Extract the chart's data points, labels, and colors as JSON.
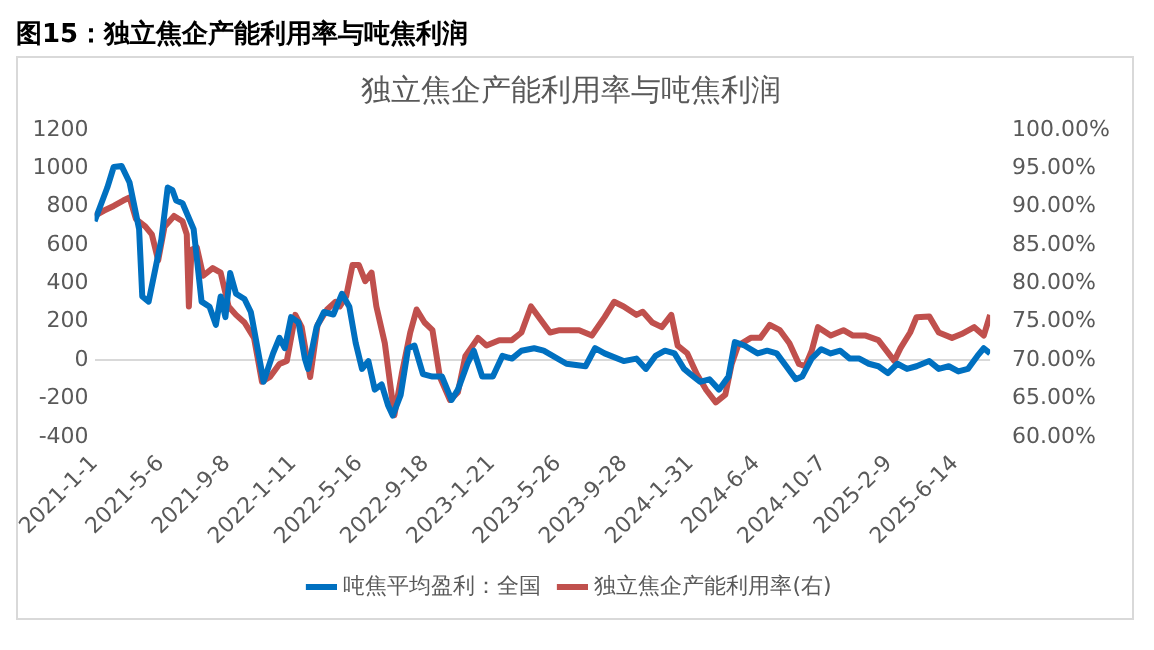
{
  "chart_data": {
    "type": "line",
    "title": "图15：独立焦企产能利用率与吨焦利润",
    "subtitle": "独立焦企产能利用率与吨焦利润",
    "xlim": [
      "2021-01-01",
      "2025-08-19"
    ],
    "xticks": [
      {
        "value": "2021-01-01",
        "label": "2021-1-1"
      },
      {
        "value": "2021-05-06",
        "label": "2021-5-6"
      },
      {
        "value": "2021-09-08",
        "label": "2021-9-8"
      },
      {
        "value": "2022-01-11",
        "label": "2022-1-11"
      },
      {
        "value": "2022-05-16",
        "label": "2022-5-16"
      },
      {
        "value": "2022-09-18",
        "label": "2022-9-18"
      },
      {
        "value": "2023-01-21",
        "label": "2023-1-21"
      },
      {
        "value": "2023-05-26",
        "label": "2023-5-26"
      },
      {
        "value": "2023-09-28",
        "label": "2023-9-28"
      },
      {
        "value": "2024-01-31",
        "label": "2024-1-31"
      },
      {
        "value": "2024-06-04",
        "label": "2024-6-4"
      },
      {
        "value": "2024-10-07",
        "label": "2024-10-7"
      },
      {
        "value": "2025-02-09",
        "label": "2025-2-9"
      },
      {
        "value": "2025-06-14",
        "label": "2025-6-14"
      }
    ],
    "ylim": [
      -400,
      1200
    ],
    "yticks": [
      -400,
      -200,
      0,
      200,
      400,
      600,
      800,
      1000,
      1200
    ],
    "y2lim": [
      60,
      100
    ],
    "y2ticks": [
      {
        "value": 60,
        "label": "60.00%"
      },
      {
        "value": 65,
        "label": "65.00%"
      },
      {
        "value": 70,
        "label": "70.00%"
      },
      {
        "value": 75,
        "label": "75.00%"
      },
      {
        "value": 80,
        "label": "80.00%"
      },
      {
        "value": 85,
        "label": "85.00%"
      },
      {
        "value": 90,
        "label": "90.00%"
      },
      {
        "value": 95,
        "label": "95.00%"
      },
      {
        "value": 100,
        "label": "100.00%"
      }
    ],
    "legend": "bottom",
    "marker": "none",
    "line_style": "solid",
    "series": [
      {
        "name": "吨焦平均盈利：全国",
        "color": "#0070c0",
        "x": [
          "2021-01-01",
          "2021-01-25",
          "2021-02-06",
          "2021-02-21",
          "2021-03-08",
          "2021-03-26",
          "2021-04-01",
          "2021-04-13",
          "2021-04-25",
          "2021-05-07",
          "2021-05-19",
          "2021-05-28",
          "2021-06-04",
          "2021-06-16",
          "2021-07-07",
          "2021-07-22",
          "2021-08-06",
          "2021-08-18",
          "2021-08-27",
          "2021-09-05",
          "2021-09-14",
          "2021-09-25",
          "2021-10-11",
          "2021-10-23",
          "2021-11-10",
          "2021-11-16",
          "2021-12-04",
          "2021-12-16",
          "2021-12-26",
          "2022-01-07",
          "2022-01-21",
          "2022-02-02",
          "2022-02-08",
          "2022-02-24",
          "2022-03-10",
          "2022-03-28",
          "2022-04-13",
          "2022-04-27",
          "2022-05-09",
          "2022-05-21",
          "2022-06-02",
          "2022-06-14",
          "2022-06-27",
          "2022-07-09",
          "2022-07-18",
          "2022-08-02",
          "2022-08-16",
          "2022-08-28",
          "2022-09-13",
          "2022-10-01",
          "2022-10-19",
          "2022-11-06",
          "2022-11-18",
          "2022-12-06",
          "2022-12-18",
          "2023-01-03",
          "2023-01-23",
          "2023-02-10",
          "2023-02-28",
          "2023-03-18",
          "2023-04-11",
          "2023-04-29",
          "2023-06-11",
          "2023-07-17",
          "2023-08-04",
          "2023-08-22",
          "2023-09-27",
          "2023-10-21",
          "2023-11-08",
          "2023-11-26",
          "2023-12-14",
          "2024-01-01",
          "2024-01-19",
          "2024-01-31",
          "2024-02-18",
          "2024-03-07",
          "2024-03-25",
          "2024-04-12",
          "2024-04-24",
          "2024-05-12",
          "2024-06-06",
          "2024-06-24",
          "2024-07-12",
          "2024-07-30",
          "2024-08-17",
          "2024-08-29",
          "2024-09-16",
          "2024-10-04",
          "2024-10-22",
          "2024-11-09",
          "2024-11-27",
          "2024-12-15",
          "2025-01-02",
          "2025-01-20",
          "2025-02-07",
          "2025-02-25",
          "2025-03-15",
          "2025-04-02",
          "2025-04-26",
          "2025-05-14",
          "2025-06-02",
          "2025-06-20",
          "2025-07-08",
          "2025-07-26",
          "2025-08-07",
          "2025-08-19"
        ],
        "values": [
          724,
          900,
          1007,
          1012,
          926,
          683,
          332,
          305,
          467,
          629,
          900,
          886,
          832,
          818,
          683,
          305,
          278,
          184,
          332,
          224,
          454,
          346,
          319,
          251,
          -19,
          -113,
          35,
          116,
          62,
          224,
          197,
          8,
          -46,
          170,
          251,
          238,
          346,
          278,
          89,
          -46,
          -5,
          -154,
          -127,
          -235,
          -289,
          -181,
          62,
          76,
          -73,
          -86,
          -86,
          -208,
          -154,
          -19,
          49,
          -86,
          -86,
          22,
          8,
          49,
          62,
          49,
          -19,
          -32,
          62,
          35,
          -5,
          8,
          -46,
          22,
          49,
          35,
          -46,
          -73,
          -113,
          -100,
          -154,
          -86,
          94,
          76,
          35,
          49,
          35,
          -32,
          -100,
          -86,
          8,
          57,
          35,
          49,
          8,
          8,
          -19,
          -32,
          -68,
          -19,
          -46,
          -32,
          -5,
          -46,
          -32,
          -59,
          -46,
          22,
          62,
          35
        ]
      },
      {
        "name": "独立焦企产能利用率(右)",
        "color": "#c0504d",
        "axis": "y2",
        "x": [
          "2021-01-01",
          "2021-01-19",
          "2021-02-06",
          "2021-02-24",
          "2021-03-08",
          "2021-03-20",
          "2021-04-07",
          "2021-04-19",
          "2021-05-01",
          "2021-05-13",
          "2021-05-31",
          "2021-06-16",
          "2021-06-24",
          "2021-06-28",
          "2021-07-03",
          "2021-07-13",
          "2021-07-25",
          "2021-08-12",
          "2021-08-27",
          "2021-09-11",
          "2021-09-25",
          "2021-10-11",
          "2021-10-29",
          "2021-11-13",
          "2021-11-28",
          "2021-12-16",
          "2021-12-30",
          "2022-01-15",
          "2022-01-27",
          "2022-02-12",
          "2022-02-26",
          "2022-03-16",
          "2022-04-01",
          "2022-04-09",
          "2022-04-21",
          "2022-05-03",
          "2022-05-15",
          "2022-05-27",
          "2022-06-08",
          "2022-06-17",
          "2022-07-03",
          "2022-07-21",
          "2022-08-04",
          "2022-08-20",
          "2022-09-01",
          "2022-09-16",
          "2022-10-01",
          "2022-10-15",
          "2022-11-03",
          "2022-11-18",
          "2022-12-02",
          "2022-12-26",
          "2023-01-11",
          "2023-02-04",
          "2023-02-28",
          "2023-03-18",
          "2023-04-05",
          "2023-04-23",
          "2023-05-11",
          "2023-05-29",
          "2023-06-17",
          "2023-07-05",
          "2023-07-29",
          "2023-08-22",
          "2023-09-09",
          "2023-09-27",
          "2023-10-21",
          "2023-11-02",
          "2023-11-20",
          "2023-12-08",
          "2023-12-26",
          "2024-01-07",
          "2024-01-25",
          "2024-02-12",
          "2024-03-01",
          "2024-03-19",
          "2024-04-06",
          "2024-04-18",
          "2024-04-30",
          "2024-05-24",
          "2024-06-11",
          "2024-06-29",
          "2024-07-18",
          "2024-08-05",
          "2024-08-23",
          "2024-09-04",
          "2024-09-16",
          "2024-09-28",
          "2024-10-22",
          "2024-11-15",
          "2024-12-03",
          "2024-12-27",
          "2025-01-20",
          "2025-02-19",
          "2025-03-03",
          "2025-03-21",
          "2025-04-02",
          "2025-04-26",
          "2025-05-14",
          "2025-06-08",
          "2025-06-26",
          "2025-07-20",
          "2025-08-07",
          "2025-08-19"
        ],
        "values": [
          88.8,
          89.5,
          90.1,
          90.8,
          91.2,
          88.4,
          87.4,
          86.4,
          83.0,
          87.4,
          88.8,
          88.1,
          86.4,
          77.0,
          84.4,
          84.7,
          81.0,
          82.0,
          81.4,
          77.0,
          75.9,
          74.9,
          72.9,
          67.2,
          67.8,
          69.5,
          69.9,
          75.9,
          74.3,
          67.8,
          74.6,
          76.6,
          77.6,
          77.0,
          78.3,
          82.4,
          82.4,
          80.3,
          81.4,
          77.0,
          72.2,
          62.8,
          68.2,
          73.6,
          76.6,
          74.9,
          73.9,
          67.8,
          64.8,
          65.8,
          70.5,
          72.9,
          71.9,
          72.6,
          72.6,
          73.6,
          77.0,
          75.3,
          73.6,
          73.9,
          73.9,
          73.9,
          73.2,
          75.6,
          77.6,
          77.0,
          75.9,
          76.3,
          74.9,
          74.3,
          75.9,
          71.9,
          70.9,
          68.2,
          66.1,
          64.5,
          65.5,
          69.5,
          71.9,
          72.9,
          72.9,
          74.6,
          73.9,
          72.2,
          69.5,
          69.2,
          71.2,
          74.3,
          73.2,
          73.9,
          73.2,
          73.2,
          72.6,
          69.9,
          71.6,
          73.6,
          75.6,
          75.7,
          73.6,
          72.9,
          73.4,
          74.3,
          73.2,
          75.9
        ]
      }
    ]
  }
}
